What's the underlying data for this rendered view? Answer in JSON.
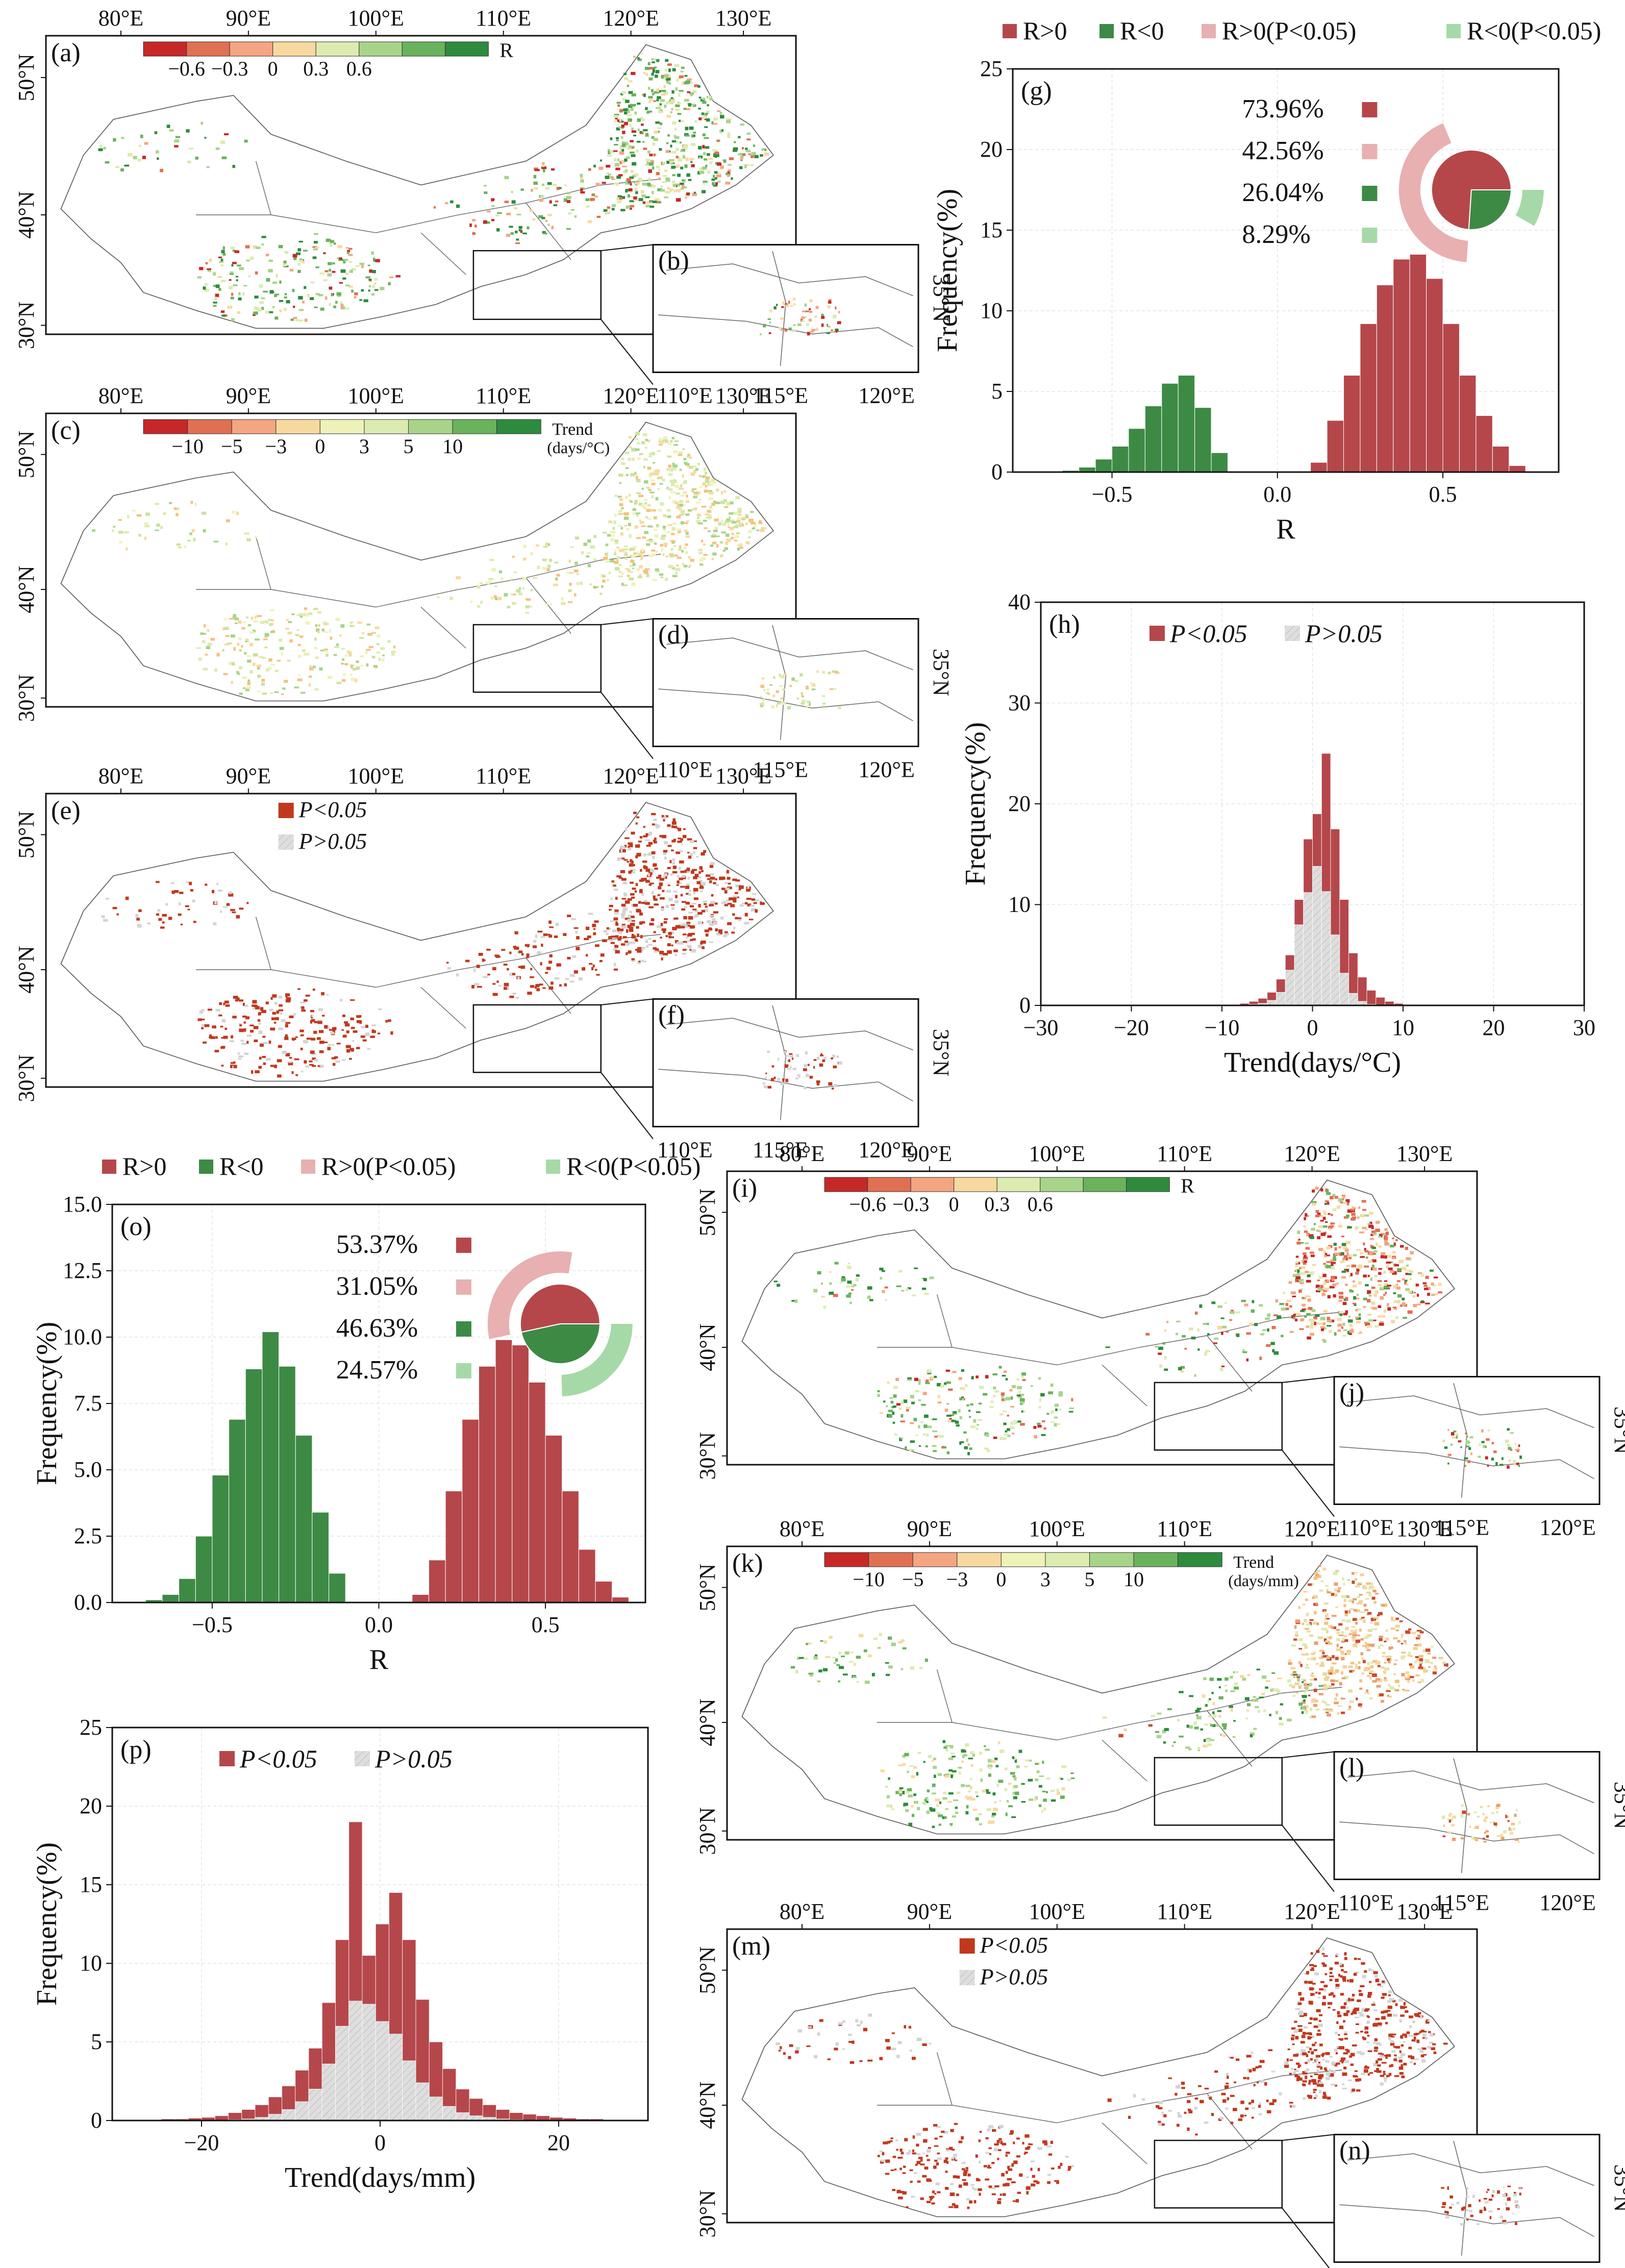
{
  "figure": {
    "colors": {
      "red": "#b5474b",
      "green": "#3d8a45",
      "pink": "#e8b0b0",
      "lightgreen": "#a6d9a8",
      "gray": "#dedede",
      "sigred": "#c0391e"
    },
    "r_ramp": [
      "#c62828",
      "#e07052",
      "#f4a582",
      "#f7d9a0",
      "#dcebb0",
      "#a8d48a",
      "#6ab25c",
      "#2e8b3d"
    ],
    "map_axes": {
      "lon_ticks": [
        "80°E",
        "90°E",
        "100°E",
        "110°E",
        "120°E",
        "130°E"
      ],
      "lat_ticks": [
        "50°N",
        "40°N",
        "30°N"
      ],
      "inset_lon_ticks": [
        "110°E",
        "115°E",
        "120°E"
      ],
      "inset_lat_tick": "35°N"
    },
    "maps": [
      {
        "panel": "(a)",
        "inset_panel": "(b)",
        "kind": "r",
        "legend_ticks": [
          "−0.6",
          "−0.3",
          "0",
          "0.3",
          "0.6"
        ],
        "legend_label": "R",
        "legend_unit": ""
      },
      {
        "panel": "(c)",
        "inset_panel": "(d)",
        "kind": "trend",
        "legend_ticks": [
          "−10",
          "−5",
          "−3",
          "0",
          "3",
          "5",
          "10"
        ],
        "legend_label": "Trend",
        "legend_unit": "(days/°C)"
      },
      {
        "panel": "(e)",
        "inset_panel": "(f)",
        "kind": "sig",
        "legend_items": [
          "P<0.05",
          "P>0.05"
        ]
      },
      {
        "panel": "(i)",
        "inset_panel": "(j)",
        "kind": "r",
        "legend_ticks": [
          "−0.6",
          "−0.3",
          "0",
          "0.3",
          "0.6"
        ],
        "legend_label": "R",
        "legend_unit": ""
      },
      {
        "panel": "(k)",
        "inset_panel": "(l)",
        "kind": "trend",
        "legend_ticks": [
          "−10",
          "−5",
          "−3",
          "0",
          "3",
          "5",
          "10"
        ],
        "legend_label": "Trend",
        "legend_unit": "(days/mm)"
      },
      {
        "panel": "(m)",
        "inset_panel": "(n)",
        "kind": "sig",
        "legend_items": [
          "P<0.05",
          "P>0.05"
        ]
      }
    ]
  },
  "chart_data": [
    {
      "panel": "(g)",
      "type": "bar",
      "title": "",
      "legend": [
        "R>0",
        "R<0",
        "R>0(P<0.05)",
        "R<0(P<0.05)"
      ],
      "xlabel": "R",
      "ylabel": "Frequency(%)",
      "xlim": [
        -0.8,
        0.85
      ],
      "ylim": [
        0,
        25
      ],
      "xticks": [
        -0.5,
        0.0,
        0.5
      ],
      "xtick_labels": [
        "−0.5",
        "0.0",
        "0.5"
      ],
      "yticks": [
        0,
        5,
        10,
        15,
        20,
        25
      ],
      "ytick_labels": [
        "0",
        "5",
        "10",
        "15",
        "20",
        "25"
      ],
      "bin_width": 0.05,
      "series": [
        {
          "name": "R<0",
          "bins": [
            -0.625,
            -0.575,
            -0.525,
            -0.475,
            -0.425,
            -0.375,
            -0.325,
            -0.275,
            -0.225,
            -0.175
          ],
          "values": [
            0.1,
            0.3,
            0.8,
            1.6,
            2.7,
            4.1,
            5.5,
            6.0,
            4.0,
            1.2
          ]
        },
        {
          "name": "R>0",
          "bins": [
            0.125,
            0.175,
            0.225,
            0.275,
            0.325,
            0.375,
            0.425,
            0.475,
            0.525,
            0.575,
            0.625,
            0.675,
            0.725
          ],
          "values": [
            0.6,
            3.2,
            6.0,
            9.2,
            11.6,
            13.2,
            13.5,
            12.0,
            9.2,
            6.0,
            3.5,
            1.6,
            0.4
          ]
        }
      ],
      "pie": {
        "labels": [
          "R>0",
          "R>0(P<0.05)",
          "R<0",
          "R<0(P<0.05)"
        ],
        "values": [
          73.96,
          42.56,
          26.04,
          8.29
        ],
        "value_labels": [
          "73.96%",
          "42.56%",
          "26.04%",
          "8.29%"
        ]
      }
    },
    {
      "panel": "(h)",
      "type": "bar",
      "title": "",
      "legend": [
        "P<0.05",
        "P>0.05"
      ],
      "xlabel": "Trend(days/°C)",
      "ylabel": "Frequency(%)",
      "xlim": [
        -30,
        30
      ],
      "ylim": [
        0,
        40
      ],
      "xticks": [
        -30,
        -20,
        -10,
        0,
        10,
        20,
        30
      ],
      "xtick_labels": [
        "−30",
        "−20",
        "−10",
        "0",
        "10",
        "20",
        "30"
      ],
      "yticks": [
        0,
        10,
        20,
        30,
        40
      ],
      "ytick_labels": [
        "0",
        "10",
        "20",
        "30",
        "40"
      ],
      "bin_width": 1,
      "bins": [
        -7.5,
        -6.5,
        -5.5,
        -4.5,
        -3.5,
        -2.5,
        -1.5,
        -0.5,
        0.5,
        1.5,
        2.5,
        3.5,
        4.5,
        5.5,
        6.5,
        7.5,
        8.5,
        9.5
      ],
      "series": [
        {
          "name": "P<0.05",
          "values": [
            0.2,
            0.4,
            0.7,
            1.3,
            2.6,
            5.0,
            10.5,
            16.5,
            19.0,
            25.0,
            17.5,
            10.5,
            5.2,
            2.8,
            1.5,
            0.8,
            0.4,
            0.2
          ]
        },
        {
          "name": "P>0.05",
          "values": [
            0,
            0.1,
            0.2,
            0.5,
            1.3,
            3.5,
            8.0,
            11.2,
            13.8,
            11.3,
            7.0,
            3.2,
            1.2,
            0.4,
            0.1,
            0,
            0,
            0
          ]
        }
      ]
    },
    {
      "panel": "(o)",
      "type": "bar",
      "title": "",
      "legend": [
        "R>0",
        "R<0",
        "R>0(P<0.05)",
        "R<0(P<0.05)"
      ],
      "xlabel": "R",
      "ylabel": "Frequency(%)",
      "xlim": [
        -0.8,
        0.8
      ],
      "ylim": [
        0,
        15
      ],
      "xticks": [
        -0.5,
        0.0,
        0.5
      ],
      "xtick_labels": [
        "−0.5",
        "0.0",
        "0.5"
      ],
      "yticks": [
        0,
        2.5,
        5,
        7.5,
        10,
        12.5,
        15
      ],
      "ytick_labels": [
        "0.0",
        "2.5",
        "5.0",
        "7.5",
        "10.0",
        "12.5",
        "15.0"
      ],
      "bin_width": 0.05,
      "series": [
        {
          "name": "R<0",
          "bins": [
            -0.675,
            -0.625,
            -0.575,
            -0.525,
            -0.475,
            -0.425,
            -0.375,
            -0.325,
            -0.275,
            -0.225,
            -0.175,
            -0.125
          ],
          "values": [
            0.1,
            0.3,
            0.9,
            2.5,
            4.8,
            6.9,
            8.8,
            10.2,
            8.9,
            6.3,
            3.4,
            1.1
          ]
        },
        {
          "name": "R>0",
          "bins": [
            0.125,
            0.175,
            0.225,
            0.275,
            0.325,
            0.375,
            0.425,
            0.475,
            0.525,
            0.575,
            0.625,
            0.675,
            0.725
          ],
          "values": [
            0.3,
            1.6,
            4.2,
            6.9,
            8.9,
            9.9,
            9.7,
            8.3,
            6.3,
            4.2,
            2.0,
            0.8,
            0.2
          ]
        }
      ],
      "pie": {
        "labels": [
          "R>0",
          "R>0(P<0.05)",
          "R<0",
          "R<0(P<0.05)"
        ],
        "values": [
          53.37,
          31.05,
          46.63,
          24.57
        ],
        "value_labels": [
          "53.37%",
          "31.05%",
          "46.63%",
          "24.57%"
        ]
      }
    },
    {
      "panel": "(p)",
      "type": "bar",
      "title": "",
      "legend": [
        "P<0.05",
        "P>0.05"
      ],
      "xlabel": "Trend(days/mm)",
      "ylabel": "Frequency(%)",
      "xlim": [
        -30,
        30
      ],
      "ylim": [
        0,
        25
      ],
      "xticks": [
        -20,
        0,
        20
      ],
      "xtick_labels": [
        "−20",
        "0",
        "20"
      ],
      "yticks": [
        0,
        5,
        10,
        15,
        20,
        25
      ],
      "ytick_labels": [
        "0",
        "5",
        "10",
        "15",
        "20",
        "25"
      ],
      "bin_width": 1.5,
      "bins": [
        -28.25,
        -26.75,
        -25.25,
        -23.75,
        -22.25,
        -20.75,
        -19.25,
        -17.75,
        -16.25,
        -14.75,
        -13.25,
        -11.75,
        -10.25,
        -8.75,
        -7.25,
        -5.75,
        -4.25,
        -2.75,
        -1.25,
        0.25,
        1.75,
        3.25,
        4.75,
        6.25,
        7.75,
        9.25,
        10.75,
        12.25,
        13.75,
        15.25,
        16.75,
        18.25,
        19.75,
        21.25,
        22.75,
        24.25,
        25.75,
        27.25,
        28.75
      ],
      "series": [
        {
          "name": "P<0.05",
          "values": [
            0.05,
            0.05,
            0.05,
            0.1,
            0.1,
            0.15,
            0.2,
            0.3,
            0.5,
            0.7,
            1.0,
            1.5,
            2.2,
            3.2,
            4.6,
            7.5,
            11.5,
            19.0,
            10.5,
            12.5,
            14.5,
            11.5,
            7.7,
            5.0,
            3.3,
            2.0,
            1.4,
            1.0,
            0.7,
            0.5,
            0.4,
            0.3,
            0.2,
            0.15,
            0.1,
            0.1,
            0.05,
            0.05,
            0.05
          ]
        },
        {
          "name": "P>0.05",
          "values": [
            0,
            0,
            0,
            0,
            0,
            0,
            0,
            0,
            0.05,
            0.1,
            0.2,
            0.4,
            0.7,
            1.2,
            2.0,
            3.6,
            6.0,
            7.6,
            7.4,
            6.3,
            5.5,
            3.8,
            2.4,
            1.5,
            0.9,
            0.5,
            0.3,
            0.2,
            0.1,
            0.05,
            0,
            0,
            0,
            0,
            0,
            0,
            0,
            0,
            0
          ]
        }
      ]
    }
  ]
}
